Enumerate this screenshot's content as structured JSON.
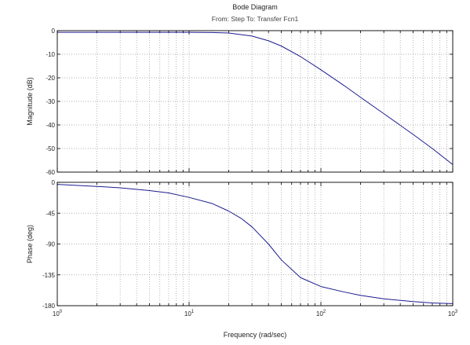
{
  "chart_data": {
    "type": "line",
    "title": "Bode Diagram",
    "subtitle": "From: Step  To: Transfer Fcn1",
    "xlabel": "Frequency  (rad/sec)",
    "x_scale": "log",
    "xlim": [
      1,
      1000
    ],
    "x_ticks": [
      {
        "value": 1,
        "base": "10",
        "exp": "0"
      },
      {
        "value": 10,
        "base": "10",
        "exp": "1"
      },
      {
        "value": 100,
        "base": "10",
        "exp": "2"
      },
      {
        "value": 1000,
        "base": "10",
        "exp": "3"
      }
    ],
    "grid": true,
    "line_color": "#1c1c8e",
    "panels": [
      {
        "name": "magnitude",
        "ylabel": "Magnitude (dB)",
        "ylim": [
          -60,
          0
        ],
        "y_ticks": [
          "0",
          "-10",
          "-20",
          "-30",
          "-40",
          "-50",
          "-60"
        ],
        "y_tick_values": [
          0,
          -10,
          -20,
          -30,
          -40,
          -50,
          -60
        ],
        "x": [
          1,
          2,
          5,
          10,
          15,
          20,
          30,
          40,
          50,
          70,
          100,
          150,
          200,
          300,
          500,
          700,
          1000
        ],
        "y": [
          -0.7,
          -0.7,
          -0.7,
          -0.7,
          -0.8,
          -1.0,
          -2.3,
          -4.3,
          -6.5,
          -11.0,
          -16.6,
          -23.3,
          -28.3,
          -35.2,
          -44.0,
          -50.0,
          -56.8
        ]
      },
      {
        "name": "phase",
        "ylabel": "Phase (deg)",
        "ylim": [
          -180,
          0
        ],
        "y_ticks": [
          "0",
          "-45",
          "-90",
          "-135",
          "-180"
        ],
        "y_tick_values": [
          0,
          -45,
          -90,
          -135,
          -180
        ],
        "x": [
          1,
          2,
          3,
          5,
          7,
          10,
          15,
          20,
          25,
          30,
          40,
          50,
          70,
          100,
          150,
          200,
          300,
          500,
          700,
          1000
        ],
        "y": [
          -3,
          -6,
          -8,
          -12,
          -15.5,
          -22,
          -31,
          -42,
          -53,
          -65,
          -90,
          -113,
          -139,
          -152,
          -160,
          -165,
          -170,
          -174,
          -176,
          -177
        ]
      }
    ]
  }
}
